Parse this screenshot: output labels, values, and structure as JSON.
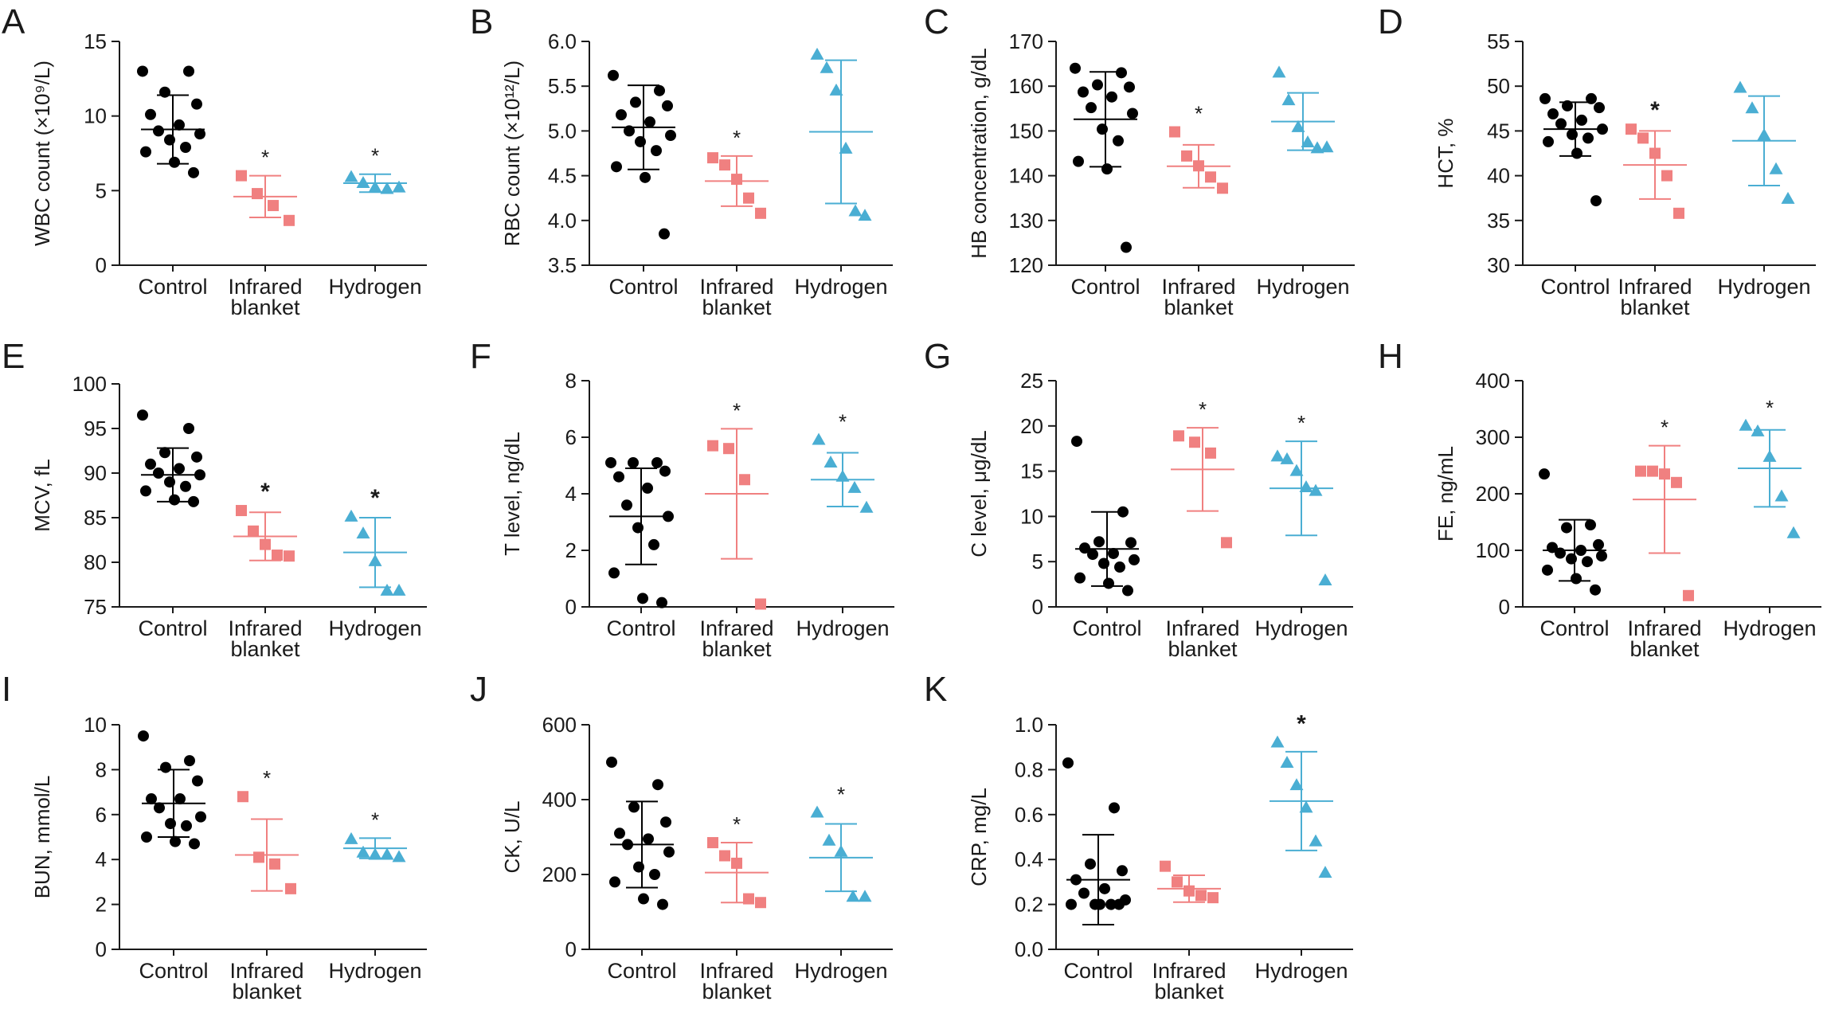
{
  "colors": {
    "Control": "#000000",
    "Infrared blanket": "#f08080",
    "Hydrogen": "#4aaed3"
  },
  "chart_data": [
    {
      "type": "scatter",
      "panel": "A",
      "ylabel": "WBC count (×10⁹/L)",
      "ylim": [
        0,
        15
      ],
      "yticks": [
        0,
        5,
        10,
        15
      ],
      "categories": [
        "Control",
        "Infrared blanket",
        "Hydrogen"
      ],
      "groups": [
        {
          "name": "Control",
          "marker": "circle",
          "mean": 9.1,
          "sd": 2.3,
          "star": "",
          "points": [
            13.0,
            13.0,
            11.6,
            10.8,
            10.1,
            9.4,
            9.0,
            8.8,
            8.4,
            7.9,
            7.6,
            6.9,
            6.2
          ]
        },
        {
          "name": "Infrared blanket",
          "marker": "square",
          "mean": 4.6,
          "sd": 1.4,
          "star": "*",
          "points": [
            6.0,
            4.8,
            4.0,
            3.0
          ]
        },
        {
          "name": "Hydrogen",
          "marker": "triangle",
          "mean": 5.5,
          "sd": 0.6,
          "star": "*",
          "points": [
            5.9,
            5.5,
            5.2,
            5.1,
            5.2
          ]
        }
      ]
    },
    {
      "type": "scatter",
      "panel": "B",
      "ylabel": "RBC count (×10¹²/L)",
      "ylim": [
        3.5,
        6.0
      ],
      "yticks": [
        3.5,
        4.0,
        4.5,
        5.0,
        5.5,
        6.0
      ],
      "categories": [
        "Control",
        "Infrared blanket",
        "Hydrogen"
      ],
      "groups": [
        {
          "name": "Control",
          "marker": "circle",
          "mean": 5.04,
          "sd": 0.47,
          "star": "",
          "points": [
            5.62,
            5.45,
            5.32,
            5.28,
            5.18,
            5.1,
            5.0,
            4.95,
            4.88,
            4.78,
            4.6,
            4.48,
            3.85
          ]
        },
        {
          "name": "Infrared blanket",
          "marker": "square",
          "mean": 4.44,
          "sd": 0.28,
          "star": "*",
          "points": [
            4.7,
            4.62,
            4.46,
            4.25,
            4.08
          ]
        },
        {
          "name": "Hydrogen",
          "marker": "triangle",
          "mean": 4.99,
          "sd": 0.8,
          "star": "",
          "points": [
            5.85,
            5.7,
            5.45,
            4.8,
            4.1,
            4.05
          ]
        }
      ]
    },
    {
      "type": "scatter",
      "panel": "C",
      "ylabel": "HB concentration, g/dL",
      "ylim": [
        120,
        170
      ],
      "yticks": [
        120,
        130,
        140,
        150,
        160,
        170
      ],
      "categories": [
        "Control",
        "Infrared blanket",
        "Hydrogen"
      ],
      "groups": [
        {
          "name": "Control",
          "marker": "circle",
          "mean": 152.6,
          "sd": 10.6,
          "star": "",
          "points": [
            164,
            163,
            160.3,
            159.8,
            158.7,
            157.6,
            155.2,
            153.9,
            150.4,
            147.8,
            143.2,
            141.5,
            124
          ]
        },
        {
          "name": "Infrared blanket",
          "marker": "square",
          "mean": 142.1,
          "sd": 4.8,
          "star": "*",
          "points": [
            149.8,
            144.4,
            142.2,
            139.7,
            137.2
          ]
        },
        {
          "name": "Hydrogen",
          "marker": "triangle",
          "mean": 152.1,
          "sd": 6.4,
          "star": "",
          "points": [
            163.0,
            156.8,
            150.8,
            147.4,
            146.1,
            146.3
          ]
        }
      ]
    },
    {
      "type": "scatter",
      "panel": "D",
      "ylabel": "HCT, %",
      "ylim": [
        30,
        55
      ],
      "yticks": [
        30,
        35,
        40,
        45,
        50,
        55
      ],
      "categories": [
        "Control",
        "Infrared blanket",
        "Hydrogen"
      ],
      "groups": [
        {
          "name": "Control",
          "marker": "circle",
          "mean": 45.2,
          "sd": 3.0,
          "star": "",
          "points": [
            48.6,
            48.6,
            47.8,
            47.6,
            46.9,
            46.2,
            45.8,
            45.2,
            44.6,
            44.2,
            43.8,
            42.5,
            37.2
          ]
        },
        {
          "name": "Infrared blanket",
          "marker": "square",
          "mean": 41.2,
          "sd": 3.8,
          "star": "*",
          "points": [
            45.2,
            44.2,
            42.5,
            40.0,
            35.8
          ]
        },
        {
          "name": "Hydrogen",
          "marker": "triangle",
          "mean": 43.9,
          "sd": 5.0,
          "star": "",
          "points": [
            49.8,
            47.5,
            44.5,
            40.7,
            37.4
          ]
        }
      ]
    },
    {
      "type": "scatter",
      "panel": "E",
      "ylabel": "MCV, fL",
      "ylim": [
        75,
        100
      ],
      "yticks": [
        75,
        80,
        85,
        90,
        95,
        100
      ],
      "categories": [
        "Control",
        "Infrared blanket",
        "Hydrogen"
      ],
      "groups": [
        {
          "name": "Control",
          "marker": "circle",
          "mean": 89.8,
          "sd": 3.0,
          "star": "",
          "points": [
            96.5,
            95.0,
            92.3,
            91.8,
            91.0,
            90.5,
            90.0,
            89.8,
            89.0,
            88.5,
            88.0,
            87.0,
            86.8
          ]
        },
        {
          "name": "Infrared blanket",
          "marker": "square",
          "mean": 82.9,
          "sd": 2.7,
          "star": "*",
          "points": [
            85.8,
            83.5,
            82.0,
            80.8,
            80.7
          ]
        },
        {
          "name": "Hydrogen",
          "marker": "triangle",
          "mean": 81.1,
          "sd": 3.9,
          "star": "*",
          "points": [
            85.1,
            83.2,
            80.1,
            76.8,
            76.8
          ]
        }
      ]
    },
    {
      "type": "scatter",
      "panel": "F",
      "ylabel": "T level, ng/dL",
      "ylim": [
        0,
        8
      ],
      "yticks": [
        0,
        2,
        4,
        6,
        8
      ],
      "categories": [
        "Control",
        "Infrared blanket",
        "Hydrogen"
      ],
      "groups": [
        {
          "name": "Control",
          "marker": "circle",
          "mean": 3.2,
          "sd": 1.7,
          "star": "",
          "points": [
            5.1,
            5.1,
            5.1,
            4.8,
            4.6,
            4.2,
            3.6,
            3.2,
            2.8,
            2.2,
            1.2,
            0.3,
            0.15
          ]
        },
        {
          "name": "Infrared blanket",
          "marker": "square",
          "mean": 4.0,
          "sd": 2.3,
          "star": "*",
          "points": [
            5.7,
            5.6,
            4.5,
            0.1
          ]
        },
        {
          "name": "Hydrogen",
          "marker": "triangle",
          "mean": 4.5,
          "sd": 0.95,
          "star": "*",
          "points": [
            5.9,
            5.1,
            4.6,
            4.2,
            3.5
          ]
        }
      ]
    },
    {
      "type": "scatter",
      "panel": "G",
      "ylabel": "C level, μg/dL",
      "ylim": [
        0,
        25
      ],
      "yticks": [
        0,
        5,
        10,
        15,
        20,
        25
      ],
      "categories": [
        "Control",
        "Infrared blanket",
        "Hydrogen"
      ],
      "groups": [
        {
          "name": "Control",
          "marker": "circle",
          "mean": 6.4,
          "sd": 4.1,
          "star": "",
          "points": [
            18.3,
            10.5,
            7.2,
            7.1,
            6.5,
            5.9,
            5.8,
            5.2,
            4.8,
            4.4,
            3.2,
            2.6,
            1.8
          ]
        },
        {
          "name": "Infrared blanket",
          "marker": "square",
          "mean": 15.2,
          "sd": 4.6,
          "star": "*",
          "points": [
            18.9,
            18.2,
            17.0,
            7.1
          ]
        },
        {
          "name": "Hydrogen",
          "marker": "triangle",
          "mean": 13.1,
          "sd": 5.2,
          "star": "*",
          "points": [
            16.6,
            16.3,
            15.0,
            13.2,
            12.8,
            2.9
          ]
        }
      ]
    },
    {
      "type": "scatter",
      "panel": "H",
      "ylabel": "FE, ng/mL",
      "ylim": [
        0,
        400
      ],
      "yticks": [
        0,
        100,
        200,
        300,
        400
      ],
      "categories": [
        "Control",
        "Infrared blanket",
        "Hydrogen"
      ],
      "groups": [
        {
          "name": "Control",
          "marker": "circle",
          "mean": 100,
          "sd": 54,
          "star": "",
          "points": [
            235,
            145,
            140,
            110,
            105,
            100,
            95,
            90,
            85,
            80,
            65,
            50,
            30
          ]
        },
        {
          "name": "Infrared blanket",
          "marker": "square",
          "mean": 190,
          "sd": 95,
          "star": "*",
          "points": [
            240,
            240,
            235,
            220,
            20
          ]
        },
        {
          "name": "Hydrogen",
          "marker": "triangle",
          "mean": 245,
          "sd": 68,
          "star": "*",
          "points": [
            320,
            310,
            265,
            195,
            130
          ]
        }
      ]
    },
    {
      "type": "scatter",
      "panel": "I",
      "ylabel": "BUN, mmol/L",
      "ylim": [
        0,
        10
      ],
      "yticks": [
        0,
        2,
        4,
        6,
        8,
        10
      ],
      "categories": [
        "Control",
        "Infrared blanket",
        "Hydrogen"
      ],
      "groups": [
        {
          "name": "Control",
          "marker": "circle",
          "mean": 6.5,
          "sd": 1.5,
          "star": "",
          "points": [
            9.5,
            8.4,
            8.1,
            7.5,
            6.7,
            6.7,
            6.3,
            5.9,
            5.6,
            5.5,
            5.0,
            4.8,
            4.7
          ]
        },
        {
          "name": "Infrared blanket",
          "marker": "square",
          "mean": 4.2,
          "sd": 1.6,
          "star": "*",
          "points": [
            6.8,
            4.1,
            3.8,
            2.7
          ]
        },
        {
          "name": "Hydrogen",
          "marker": "triangle",
          "mean": 4.5,
          "sd": 0.45,
          "star": "*",
          "points": [
            4.9,
            4.3,
            4.2,
            4.2,
            4.1
          ]
        }
      ]
    },
    {
      "type": "scatter",
      "panel": "J",
      "ylabel": "CK, U/L",
      "ylim": [
        0,
        600
      ],
      "yticks": [
        0,
        200,
        400,
        600
      ],
      "categories": [
        "Control",
        "Infrared blanket",
        "Hydrogen"
      ],
      "groups": [
        {
          "name": "Control",
          "marker": "circle",
          "mean": 280,
          "sd": 115,
          "star": "",
          "points": [
            500,
            440,
            380,
            340,
            310,
            295,
            280,
            260,
            220,
            200,
            180,
            135,
            120
          ]
        },
        {
          "name": "Infrared blanket",
          "marker": "square",
          "mean": 205,
          "sd": 80,
          "star": "*",
          "points": [
            285,
            250,
            230,
            135,
            125
          ]
        },
        {
          "name": "Hydrogen",
          "marker": "triangle",
          "mean": 245,
          "sd": 90,
          "star": "*",
          "points": [
            365,
            290,
            260,
            140,
            140
          ]
        }
      ]
    },
    {
      "type": "scatter",
      "panel": "K",
      "ylabel": "CRP, mg/L",
      "ylim": [
        0.0,
        1.0
      ],
      "yticks": [
        0.0,
        0.2,
        0.4,
        0.6,
        0.8,
        1.0
      ],
      "categories": [
        "Control",
        "Infrared blanket",
        "Hydrogen"
      ],
      "groups": [
        {
          "name": "Control",
          "marker": "circle",
          "mean": 0.31,
          "sd": 0.2,
          "star": "",
          "points": [
            0.83,
            0.63,
            0.38,
            0.35,
            0.31,
            0.27,
            0.25,
            0.22,
            0.2,
            0.2,
            0.2,
            0.2,
            0.2
          ]
        },
        {
          "name": "Infrared blanket",
          "marker": "square",
          "mean": 0.27,
          "sd": 0.06,
          "star": "",
          "points": [
            0.37,
            0.3,
            0.26,
            0.24,
            0.23
          ]
        },
        {
          "name": "Hydrogen",
          "marker": "triangle",
          "mean": 0.66,
          "sd": 0.22,
          "star": "*",
          "points": [
            0.92,
            0.83,
            0.73,
            0.63,
            0.48,
            0.34
          ]
        }
      ]
    }
  ]
}
